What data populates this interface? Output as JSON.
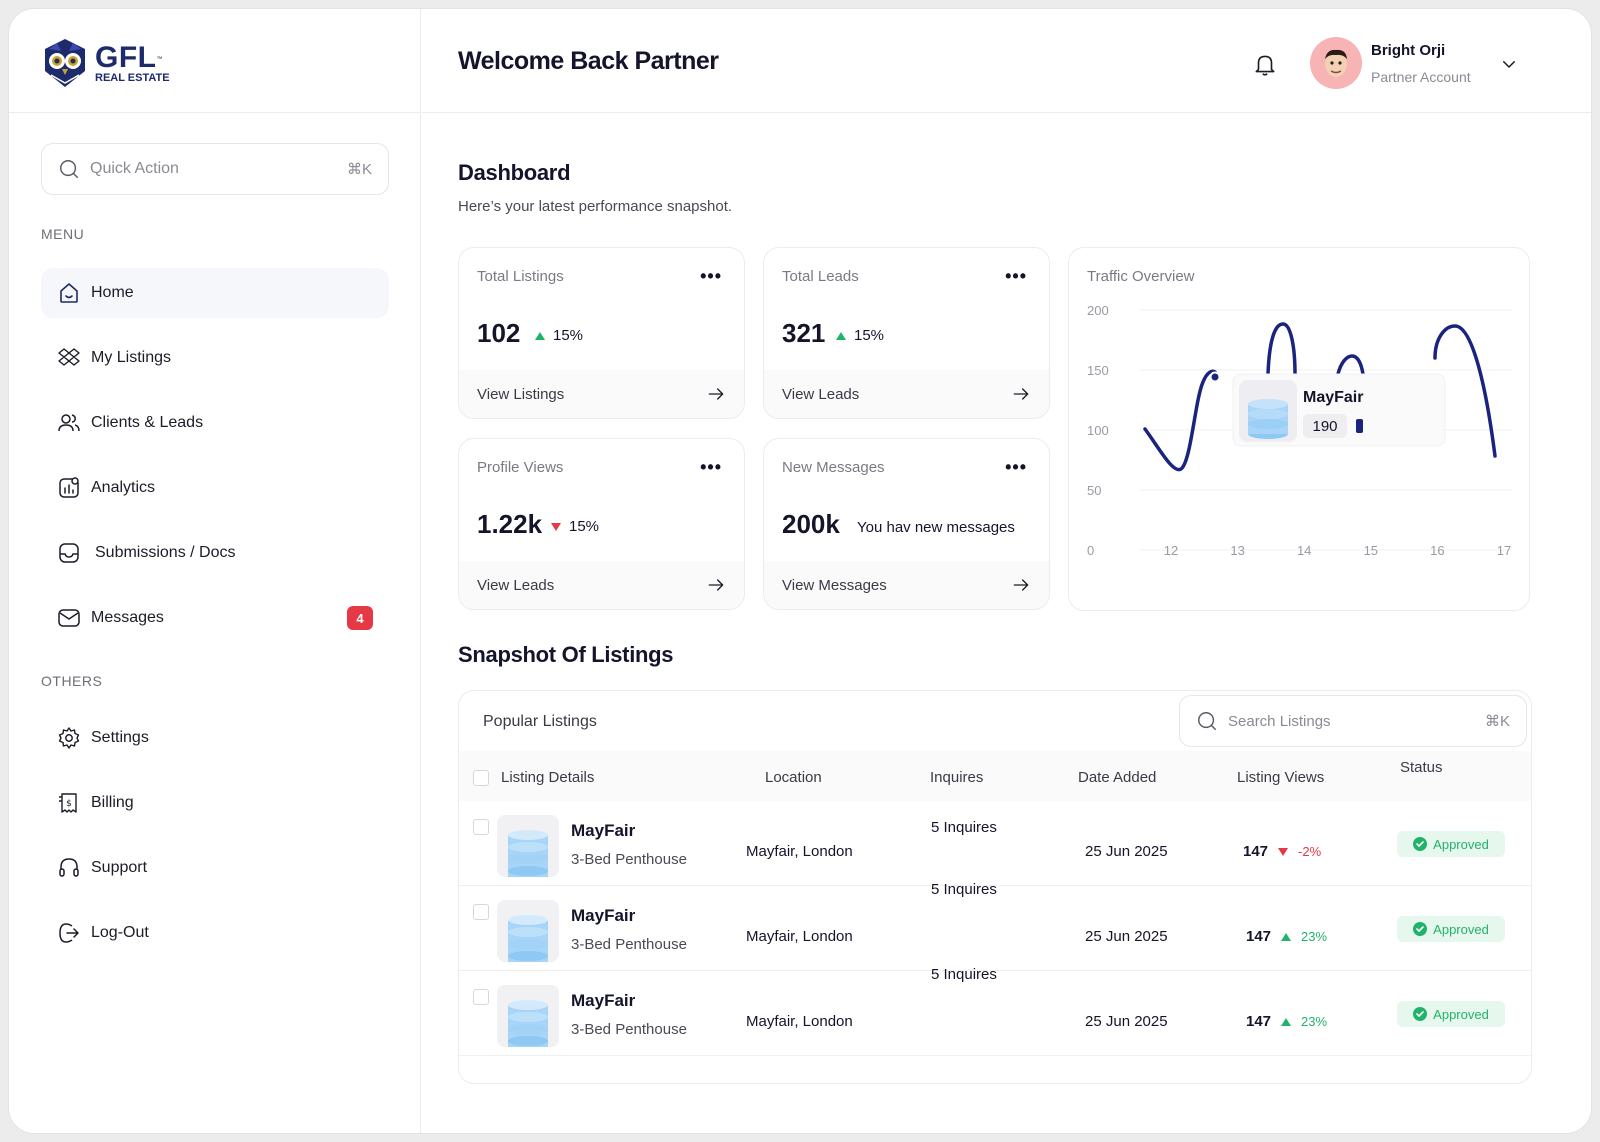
{
  "brand": {
    "name": "GFL",
    "tm": "™",
    "sub": "REAL ESTATE"
  },
  "sidebar": {
    "quick_action": {
      "placeholder": "Quick Action",
      "shortcut": "⌘K"
    },
    "menu_label": "MENU",
    "others_label": "OTHERS",
    "menu": [
      {
        "label": "Home",
        "icon": "home-icon",
        "active": true
      },
      {
        "label": "My Listings",
        "icon": "listings-icon"
      },
      {
        "label": "Clients & Leads",
        "icon": "users-icon"
      },
      {
        "label": "Analytics",
        "icon": "analytics-icon"
      },
      {
        "label": "Submissions / Docs",
        "icon": "inbox-icon"
      },
      {
        "label": "Messages",
        "icon": "mail-icon",
        "badge": "4"
      }
    ],
    "others": [
      {
        "label": "Settings",
        "icon": "gear-icon"
      },
      {
        "label": "Billing",
        "icon": "receipt-icon"
      },
      {
        "label": "Support",
        "icon": "headset-icon"
      },
      {
        "label": "Log-Out",
        "icon": "logout-icon"
      }
    ]
  },
  "header": {
    "welcome": "Welcome Back Partner",
    "user": {
      "name": "Bright Orji",
      "role": "Partner Account"
    }
  },
  "dashboard": {
    "title": "Dashboard",
    "subtitle": "Here’s your latest performance snapshot.",
    "cards": [
      {
        "title": "Total Listings",
        "value": "102",
        "trend": "up",
        "percent": "15%",
        "footer": "View Listings"
      },
      {
        "title": "Total Leads",
        "value": "321",
        "trend": "up",
        "percent": "15%",
        "footer": "View Leads"
      },
      {
        "title": "Profile Views",
        "value": "1.22k",
        "trend": "down",
        "percent": "15%",
        "footer": "View Leads"
      },
      {
        "title": "New Messages",
        "value": "200k",
        "note": "You hav new messages",
        "footer": "View Messages"
      }
    ],
    "colors": {
      "up": "#22b36a",
      "down": "#e53945",
      "line": "#1a237e"
    }
  },
  "chart_data": {
    "type": "line",
    "title": "Traffic Overview",
    "x_ticks": [
      "12",
      "13",
      "14",
      "15",
      "16",
      "17"
    ],
    "y_ticks": [
      "0",
      "50",
      "100",
      "150",
      "200"
    ],
    "ylim": [
      0,
      200
    ],
    "grid": true,
    "tooltip": {
      "label": "MayFair",
      "value": "190"
    }
  },
  "listings": {
    "section_title": "Snapshot Of Listings",
    "table_title": "Popular Listings",
    "search": {
      "placeholder": "Search Listings",
      "shortcut": "⌘K"
    },
    "columns": [
      "Listing Details",
      "Location",
      "Inquires",
      "Date Added",
      "Listing Views",
      "Status"
    ],
    "inquires_labels": [
      "5 Inquires",
      "5 Inquires",
      "5 Inquires"
    ],
    "rows": [
      {
        "name": "MayFair",
        "type": "3-Bed Penthouse",
        "location": "Mayfair, London",
        "date": "25 Jun 2025",
        "views": "147",
        "trend": "down",
        "change": "-2%",
        "status": "Approved"
      },
      {
        "name": "MayFair",
        "type": "3-Bed Penthouse",
        "location": "Mayfair, London",
        "date": "25 Jun 2025",
        "views": "147",
        "trend": "up",
        "change": "23%",
        "status": "Approved"
      },
      {
        "name": "MayFair",
        "type": "3-Bed Penthouse",
        "location": "Mayfair, London",
        "date": "25 Jun 2025",
        "views": "147",
        "trend": "up",
        "change": "23%",
        "status": "Approved"
      }
    ]
  }
}
